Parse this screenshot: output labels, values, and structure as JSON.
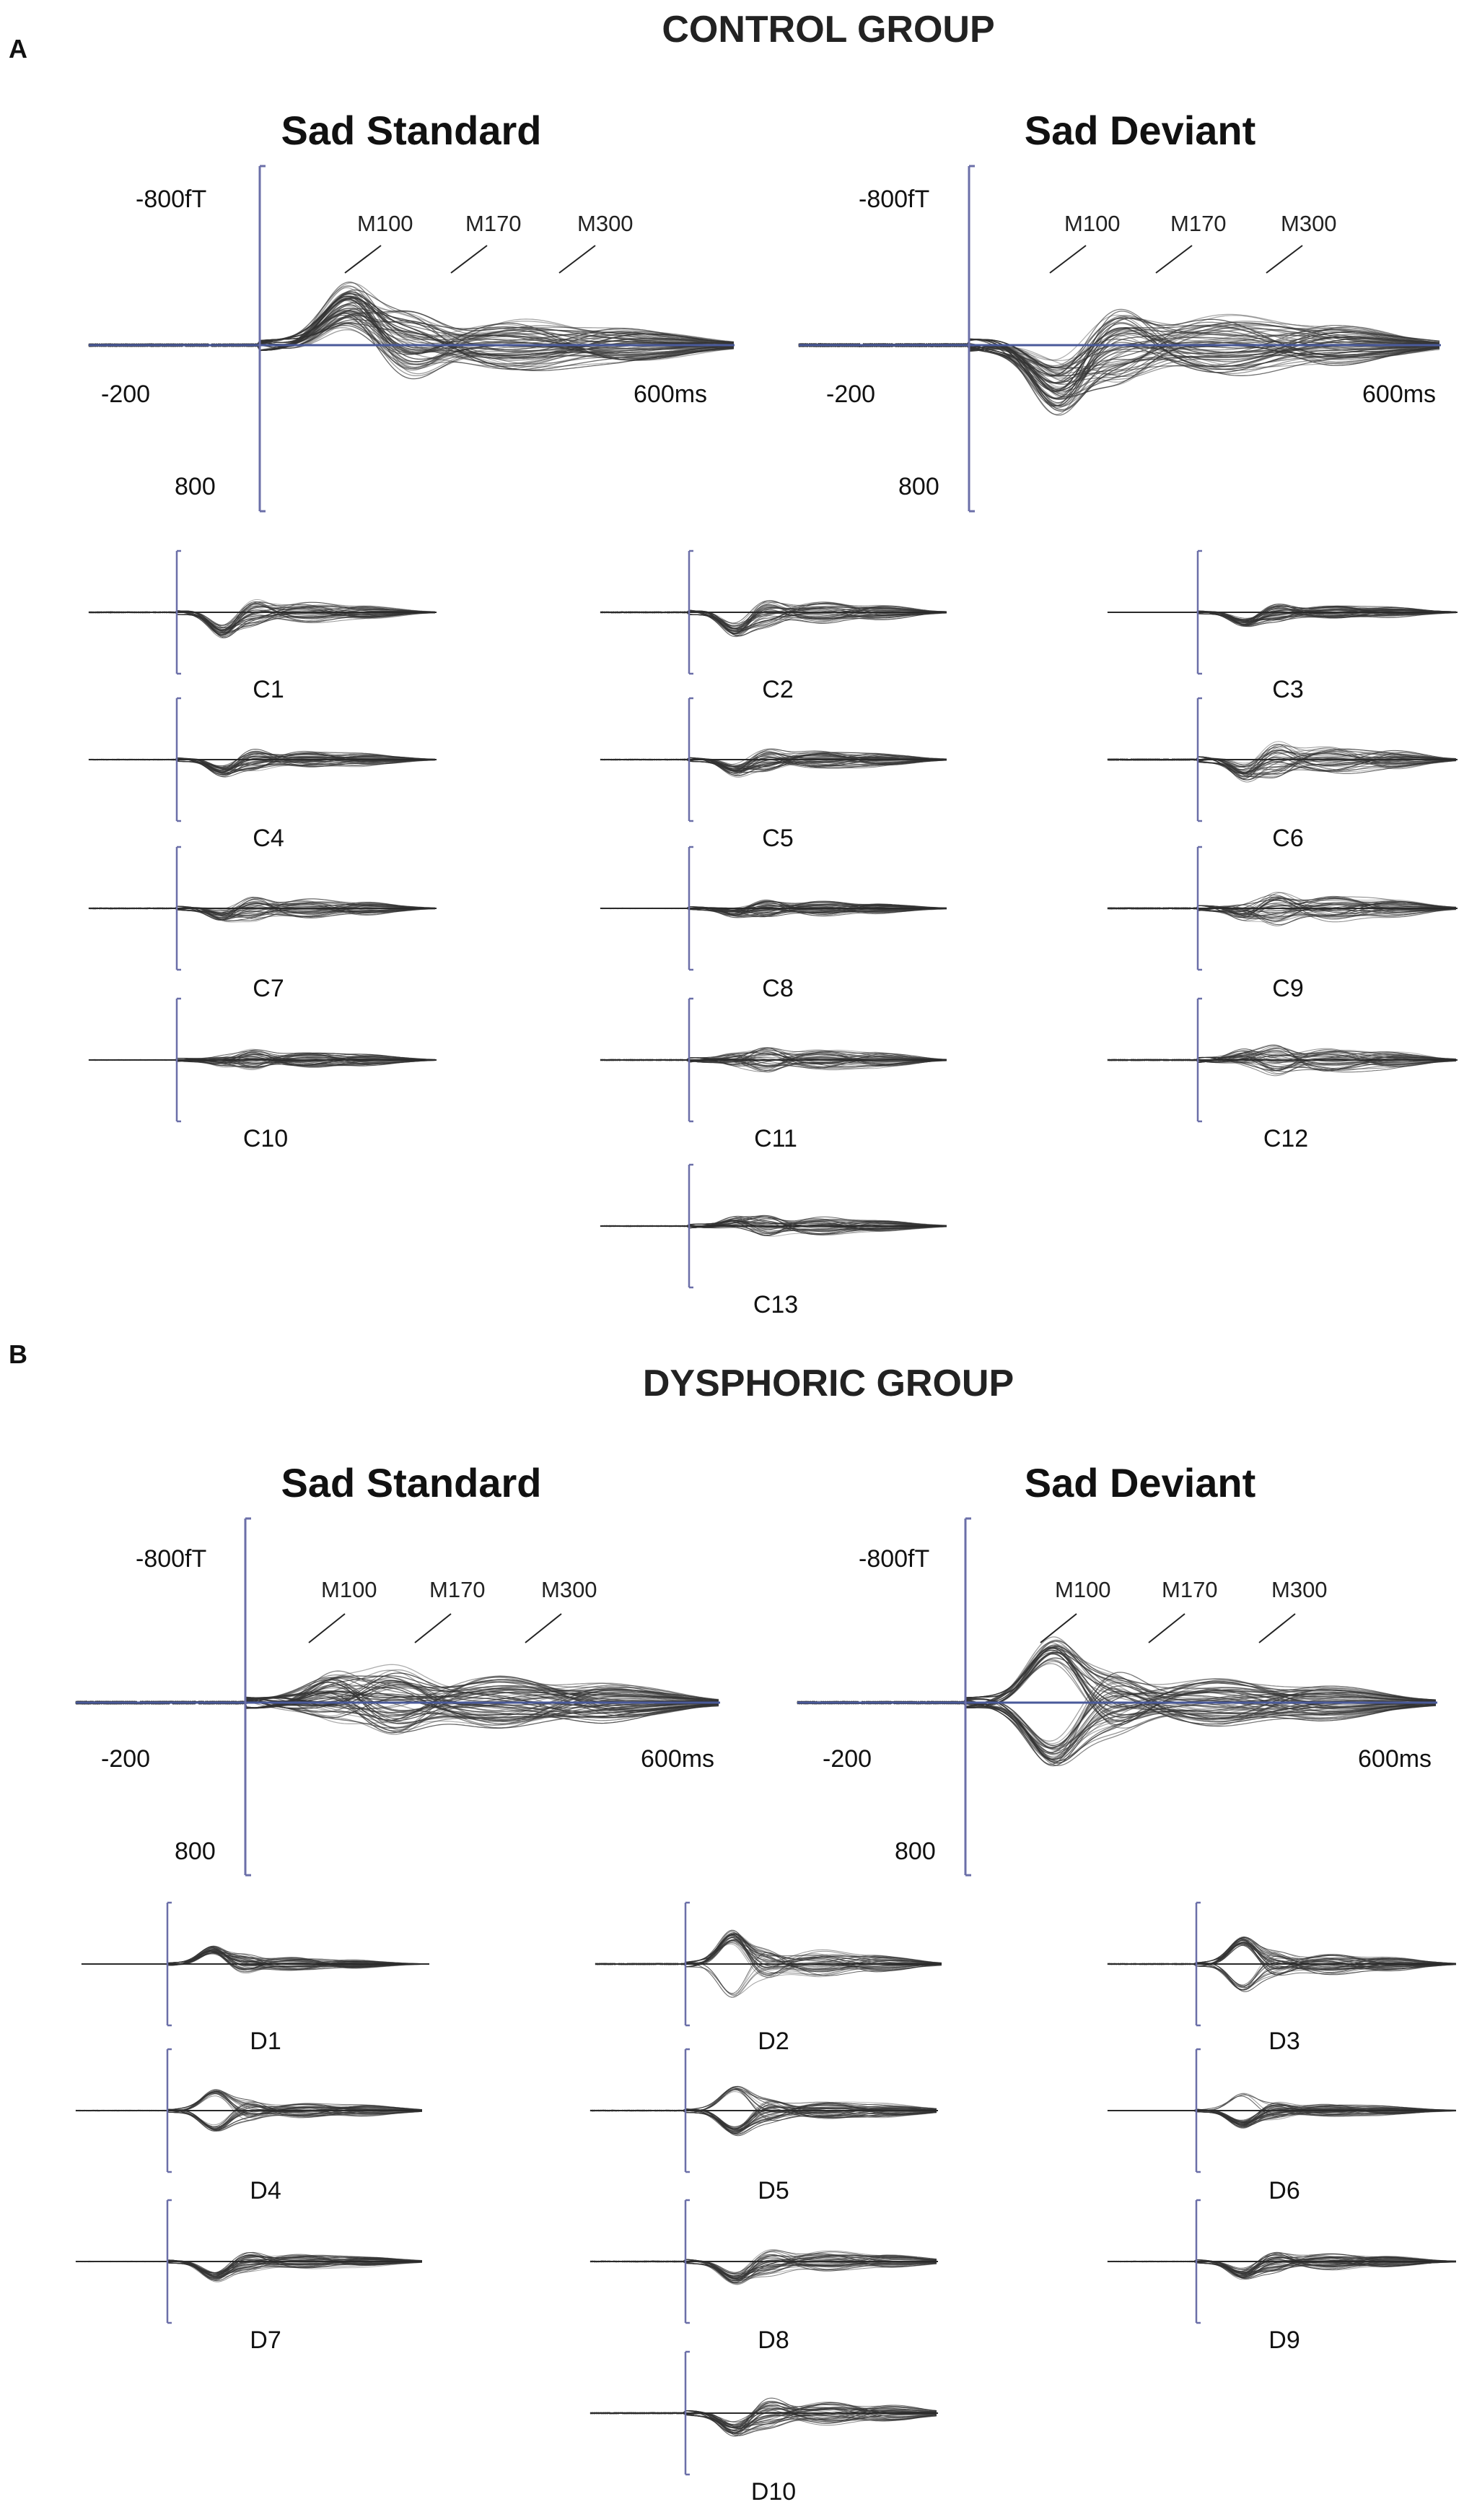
{
  "panels": [
    {
      "letter": "A",
      "group_title": "CONTROL GROUP",
      "conditions": [
        {
          "title": "Sad Standard"
        },
        {
          "title": "Sad Deviant"
        }
      ],
      "subjects": [
        "C1",
        "C2",
        "C3",
        "C4",
        "C5",
        "C6",
        "C7",
        "C8",
        "C9",
        "C10",
        "C11",
        "C12",
        "C13"
      ]
    },
    {
      "letter": "B",
      "group_title": "DYSPHORIC GROUP",
      "conditions": [
        {
          "title": "Sad Standard"
        },
        {
          "title": "Sad Deviant"
        }
      ],
      "subjects": [
        "D1",
        "D2",
        "D3",
        "D4",
        "D5",
        "D6",
        "D7",
        "D8",
        "D9",
        "D10"
      ]
    }
  ],
  "axis_labels": {
    "y_top": "-800fT",
    "y_bottom": "800",
    "x_start": "-200",
    "x_end": "600ms"
  },
  "peaks": [
    "M100",
    "M170",
    "M300"
  ],
  "colors": {
    "trace": "#333333",
    "axis": "#6b6fa8",
    "baseline": "#4a5a9a"
  },
  "chart_data": [
    {
      "type": "line",
      "title": "CONTROL GROUP — Sad Standard / Sad Deviant (butterfly plots of MEG field waveforms)",
      "xlabel": "",
      "ylabel": "",
      "xlim": [
        -200,
        600
      ],
      "ylim": [
        800,
        -800
      ],
      "x_units": "ms",
      "y_units": "fT",
      "annotations": [
        "M100",
        "M170",
        "M300"
      ]
    },
    {
      "type": "line",
      "title": "DYSPHORIC GROUP — Sad Standard / Sad Deviant (butterfly plots of MEG field waveforms)",
      "xlabel": "",
      "ylabel": "",
      "xlim": [
        -200,
        600
      ],
      "ylim": [
        800,
        -800
      ],
      "x_units": "ms",
      "y_units": "fT",
      "annotations": [
        "M100",
        "M170",
        "M300"
      ]
    }
  ]
}
